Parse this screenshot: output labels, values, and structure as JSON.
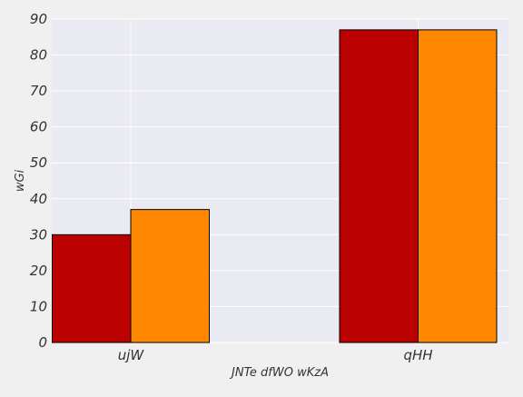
{
  "chart_data": {
    "type": "bar",
    "title": "",
    "xlabel": "JNTe dfWO wKzA",
    "ylabel": "wGi",
    "categories": [
      "ujW",
      "qHH"
    ],
    "series": [
      {
        "values": [
          30,
          87
        ],
        "color": "#bb0000"
      },
      {
        "values": [
          37,
          87
        ],
        "color": "#ff8800"
      }
    ],
    "ylim": [
      0,
      90
    ],
    "yticks": [
      0,
      10,
      20,
      30,
      40,
      50,
      60,
      70,
      80,
      90
    ],
    "grid": true,
    "legend": "none",
    "background": "#eaeaf2",
    "figure_background": "#f0f0f0",
    "bar_edge_color": "#000000",
    "grid_color": "#ffffff"
  }
}
